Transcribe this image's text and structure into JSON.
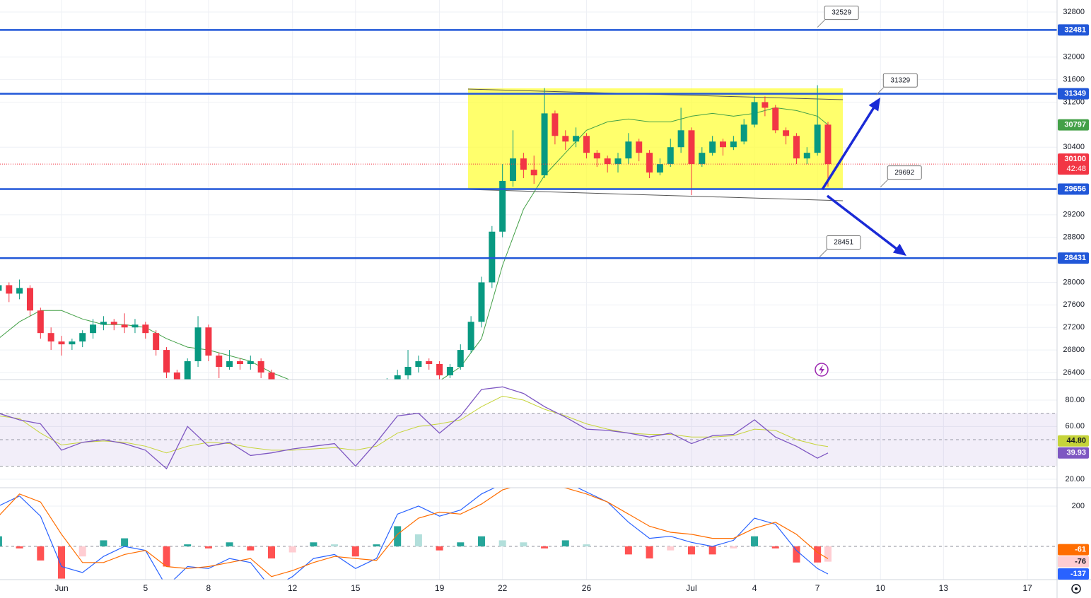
{
  "chart_data": [
    {
      "type": "candlestick",
      "x": [
        -3,
        -2.5,
        -2,
        -1.5,
        -1,
        -0.5,
        0,
        0.5,
        1,
        1.5,
        2,
        2.5,
        3,
        3.5,
        4,
        4.5,
        5,
        5.5,
        6,
        6.5,
        7,
        7.5,
        8,
        8.5,
        9,
        9.5,
        10,
        15.5,
        16,
        16.5,
        17,
        17.5,
        18,
        18.5,
        19,
        19.5,
        20,
        20.5,
        21,
        21.5,
        22,
        22.5,
        23,
        23.5,
        24,
        24.5,
        25,
        25.5,
        26,
        26.5,
        27,
        27.5,
        28,
        28.5,
        29,
        29.5,
        30,
        30.5,
        31,
        31.5,
        32,
        32.5,
        33,
        33.5,
        34,
        34.5,
        35,
        35.5,
        36,
        36.5
      ],
      "open": [
        27850,
        27950,
        27800,
        27900,
        27500,
        27100,
        26950,
        26900,
        26950,
        27100,
        27250,
        27300,
        27250,
        27200,
        27250,
        27100,
        26800,
        26400,
        26200,
        26600,
        27200,
        26700,
        26500,
        26600,
        26550,
        26600,
        26400,
        26100,
        26200,
        26350,
        26500,
        26600,
        26550,
        26350,
        26500,
        26800,
        27300,
        28000,
        28900,
        29800,
        30200,
        30000,
        29900,
        31000,
        30600,
        30500,
        30600,
        30300,
        30200,
        30100,
        30200,
        30500,
        30300,
        29950,
        30100,
        30400,
        30700,
        30100,
        30300,
        30500,
        30400,
        30500,
        30800,
        31200,
        31100,
        30700,
        30600,
        30200,
        30300,
        30800
      ],
      "high": [
        28050,
        28000,
        28050,
        27950,
        27550,
        27200,
        27050,
        27000,
        27150,
        27350,
        27400,
        27350,
        27450,
        27350,
        27300,
        27150,
        26850,
        26450,
        26650,
        27400,
        27250,
        26750,
        26800,
        26650,
        26700,
        26650,
        26450,
        26300,
        26450,
        26800,
        26700,
        26650,
        26600,
        26550,
        26900,
        27400,
        28100,
        29000,
        30100,
        30700,
        30300,
        30250,
        31450,
        31050,
        30700,
        30750,
        30650,
        30350,
        30250,
        30300,
        30650,
        30550,
        30350,
        30200,
        30550,
        31100,
        30750,
        30400,
        30600,
        30550,
        30600,
        30900,
        31300,
        31300,
        31150,
        30750,
        30650,
        30400,
        31500,
        30850
      ],
      "low": [
        27750,
        27650,
        27700,
        27400,
        27000,
        26800,
        26700,
        26800,
        26850,
        27000,
        27150,
        27150,
        27100,
        27100,
        27000,
        26700,
        26300,
        26000,
        26150,
        26500,
        26600,
        26300,
        26450,
        26450,
        26450,
        26300,
        26100,
        26000,
        26100,
        26250,
        26400,
        26450,
        26250,
        26300,
        26450,
        26750,
        27200,
        27900,
        28800,
        29700,
        29850,
        29750,
        29850,
        30450,
        30350,
        30400,
        30200,
        30050,
        29950,
        29950,
        30100,
        30150,
        29850,
        29900,
        30050,
        30300,
        29550,
        30050,
        30250,
        30250,
        30350,
        30450,
        30750,
        30950,
        30650,
        30450,
        30100,
        30100,
        30250,
        29700
      ],
      "close": [
        27950,
        27800,
        27900,
        27500,
        27100,
        26950,
        26900,
        26950,
        27100,
        27250,
        27300,
        27250,
        27200,
        27250,
        27100,
        26800,
        26400,
        26200,
        26600,
        27200,
        26700,
        26500,
        26600,
        26550,
        26600,
        26400,
        26200,
        26200,
        26350,
        26500,
        26600,
        26550,
        26350,
        26500,
        26800,
        27300,
        28000,
        28900,
        29800,
        30200,
        30000,
        29900,
        31000,
        30600,
        30500,
        30600,
        30300,
        30200,
        30100,
        30200,
        30500,
        30300,
        29950,
        30100,
        30400,
        30700,
        30100,
        30300,
        30500,
        30400,
        30500,
        30800,
        31200,
        31100,
        30700,
        30600,
        30200,
        30300,
        30800,
        30100
      ],
      "up_color": "#089981",
      "down_color": "#f23645",
      "moving_average": {
        "color": "#43a047",
        "x": [
          -3,
          -2,
          -1,
          0,
          1,
          2,
          3,
          4,
          5,
          6,
          7,
          8,
          9,
          10,
          11,
          12,
          13,
          14,
          15,
          16,
          17,
          18,
          19,
          20,
          21,
          22,
          23,
          24,
          25,
          26,
          27,
          28,
          29,
          30,
          31,
          32,
          33,
          34,
          35,
          36,
          36.5
        ],
        "values": [
          27000,
          27300,
          27500,
          27500,
          27350,
          27250,
          27250,
          27200,
          27000,
          26850,
          26800,
          26700,
          26600,
          26400,
          26250,
          26100,
          26000,
          25950,
          26000,
          26100,
          26150,
          26250,
          26500,
          27000,
          28300,
          29300,
          29900,
          30300,
          30700,
          30850,
          30900,
          30850,
          30850,
          30950,
          31000,
          30950,
          31000,
          31100,
          31050,
          30950,
          30797
        ]
      },
      "countdown": "42:48",
      "levels": [
        {
          "value": 32481
        },
        {
          "value": 31349
        },
        {
          "value": 29656
        },
        {
          "value": 28431
        }
      ],
      "level_color": "#2157d8",
      "callouts": [
        {
          "value": 32529,
          "x": 36
        },
        {
          "value": 31329,
          "x": 38.8
        },
        {
          "value": 29692,
          "x": 39
        },
        {
          "value": 28451,
          "x": 36.1
        }
      ],
      "xlim": [
        -2.93,
        47.41
      ],
      "xticks": [
        {
          "value": 0,
          "label": "Jun"
        },
        {
          "value": 4,
          "label": "5"
        },
        {
          "value": 7,
          "label": "8"
        },
        {
          "value": 11,
          "label": "12"
        },
        {
          "value": 14,
          "label": "15"
        },
        {
          "value": 18,
          "label": "19"
        },
        {
          "value": 21,
          "label": "22"
        },
        {
          "value": 25,
          "label": "26"
        },
        {
          "value": 30,
          "label": "Jul"
        },
        {
          "value": 33,
          "label": "4"
        },
        {
          "value": 36,
          "label": "7"
        },
        {
          "value": 39,
          "label": "10"
        },
        {
          "value": 42,
          "label": "13"
        },
        {
          "value": 46,
          "label": "17"
        }
      ],
      "ylim": [
        26274,
        33013
      ],
      "yticks": [
        26400,
        26800,
        27200,
        27600,
        28000,
        28800,
        29200,
        30400,
        31200,
        31600,
        32000,
        32800
      ],
      "grid": true
    },
    {
      "type": "rsi",
      "x": [
        -3,
        -2,
        -1,
        0,
        1,
        2,
        3,
        4,
        5,
        6,
        7,
        8,
        9,
        10,
        11,
        12,
        13,
        14,
        15,
        16,
        17,
        18,
        19,
        20,
        21,
        22,
        23,
        24,
        25,
        26,
        27,
        28,
        29,
        30,
        31,
        32,
        33,
        34,
        35,
        36,
        36.5
      ],
      "ylim": [
        13.6,
        95.5
      ],
      "yticks": [
        {
          "value": 20,
          "label": "20.00"
        },
        {
          "value": 60,
          "label": "60.00"
        },
        {
          "value": 80,
          "label": "80.00"
        }
      ],
      "band": [
        30,
        70
      ],
      "midline": 50,
      "band_color": "#7e57c2",
      "series": [
        {
          "color": "#7e57c2",
          "values": [
            70,
            65,
            62,
            42,
            48,
            50,
            47,
            42,
            28,
            60,
            45,
            48,
            38,
            40,
            43,
            45,
            47,
            30,
            48,
            68,
            70,
            55,
            68,
            88,
            90,
            85,
            75,
            67,
            58,
            57,
            55,
            52,
            55,
            47,
            53,
            54,
            65,
            52,
            45,
            36,
            39.93
          ]
        },
        {
          "color": "#c6d43a",
          "values": [
            68,
            66,
            55,
            46,
            48,
            49,
            48,
            45,
            40,
            45,
            48,
            47,
            44,
            42,
            42,
            43,
            44,
            42,
            45,
            55,
            60,
            62,
            65,
            75,
            83,
            80,
            73,
            68,
            62,
            58,
            55,
            54,
            54,
            52,
            52,
            53,
            58,
            57,
            50,
            46,
            44.8
          ],
          "last_label": "44.80"
        }
      ]
    },
    {
      "type": "macd",
      "x": [
        -3,
        -2,
        -1,
        0,
        1,
        2,
        3,
        4,
        5,
        6,
        7,
        8,
        9,
        10,
        11,
        12,
        13,
        14,
        15,
        16,
        17,
        18,
        19,
        20,
        21,
        22,
        23,
        24,
        25,
        26,
        27,
        28,
        29,
        30,
        31,
        32,
        33,
        34,
        35,
        36,
        36.5
      ],
      "ylim": [
        -165,
        291
      ],
      "yticks": [
        200
      ],
      "zero": 0,
      "histogram": {
        "colors": [
          "#26a69a",
          "#b2dfdb",
          "#ffcdd2",
          "#ff5252"
        ],
        "values": [
          50,
          -10,
          -70,
          -160,
          -50,
          30,
          40,
          0,
          -100,
          10,
          -10,
          20,
          -20,
          -60,
          -30,
          20,
          10,
          -50,
          10,
          100,
          60,
          -20,
          20,
          50,
          30,
          20,
          -10,
          30,
          10,
          0,
          -40,
          -60,
          -20,
          -40,
          -40,
          -10,
          50,
          -10,
          -80,
          -80,
          -76
        ]
      },
      "series": [
        {
          "color": "#2962ff",
          "values": [
            200,
            250,
            150,
            -100,
            -130,
            -50,
            0,
            -20,
            -200,
            -100,
            -110,
            -60,
            -80,
            -210,
            -150,
            -60,
            -40,
            -110,
            -60,
            160,
            200,
            150,
            180,
            260,
            310,
            330,
            300,
            320,
            270,
            220,
            120,
            40,
            50,
            20,
            0,
            30,
            140,
            110,
            -20,
            -110,
            -137
          ]
        },
        {
          "color": "#ff6d00",
          "values": [
            150,
            260,
            220,
            60,
            -80,
            -80,
            -40,
            -20,
            -100,
            -110,
            -100,
            -80,
            -60,
            -150,
            -120,
            -80,
            -50,
            -60,
            -70,
            60,
            140,
            170,
            160,
            210,
            280,
            310,
            310,
            290,
            260,
            220,
            160,
            100,
            70,
            60,
            40,
            40,
            90,
            120,
            60,
            -30,
            -61
          ]
        }
      ]
    }
  ]
}
